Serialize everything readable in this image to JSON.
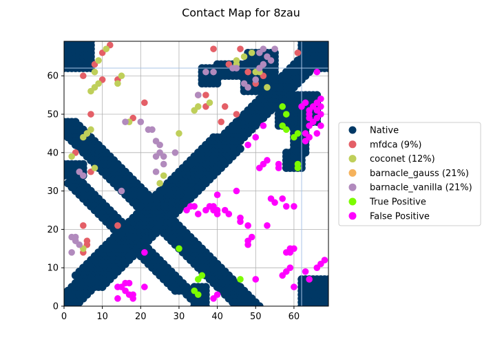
{
  "chart_data": {
    "type": "scatter",
    "title": "Contact Map for 8zau",
    "xlabel": "",
    "ylabel": "",
    "xlim": [
      0,
      69
    ],
    "ylim": [
      0,
      69
    ],
    "xticks": [
      0,
      10,
      20,
      30,
      40,
      50,
      60
    ],
    "yticks": [
      0,
      10,
      20,
      30,
      40,
      50,
      60
    ],
    "grid": true,
    "legend_position": "center-right outside",
    "reference_lines": {
      "x": 62,
      "y": 62
    },
    "series": [
      {
        "name": "Native",
        "color": "#003865",
        "bands": [
          {
            "x0": 0,
            "y0": 0,
            "x1": 69,
            "y1": 69,
            "half_width": 3
          },
          {
            "x0": 8,
            "y0": 5,
            "x1": 44,
            "y1": 41,
            "half_width": 2
          },
          {
            "x0": 5,
            "y0": 8,
            "x1": 41,
            "y1": 44,
            "half_width": 2
          },
          {
            "x0": 0,
            "y0": 48,
            "x1": 48,
            "y1": 0,
            "half_width": 3
          },
          {
            "x0": 1,
            "y0": 35,
            "x1": 34,
            "y1": 2,
            "half_width": 1
          },
          {
            "x0": 2,
            "y0": 32,
            "x1": 30,
            "y1": 4,
            "half_width": 1
          }
        ],
        "blocks": [
          {
            "x": [
              0,
              7
            ],
            "y": [
              62,
              69
            ]
          },
          {
            "x": [
              62,
              69
            ],
            "y": [
              0,
              7
            ]
          },
          {
            "x": [
              62,
              69
            ],
            "y": [
              62,
              69
            ]
          },
          {
            "x": [
              36,
              40
            ],
            "y": [
              58,
              62
            ]
          },
          {
            "x": [
              58,
              62
            ],
            "y": [
              36,
              40
            ]
          },
          {
            "x": [
              34,
              37
            ],
            "y": [
              0,
              5
            ]
          },
          {
            "x": [
              0,
              5
            ],
            "y": [
              34,
              37
            ]
          },
          {
            "x": [
              47,
              52
            ],
            "y": [
              56,
              62
            ]
          },
          {
            "x": [
              56,
              62
            ],
            "y": [
              47,
              52
            ]
          },
          {
            "x": [
              48,
              55
            ],
            "y": [
              58,
              66
            ]
          },
          {
            "x": [
              58,
              66
            ],
            "y": [
              48,
              55
            ]
          },
          {
            "x": [
              60,
              63
            ],
            "y": [
              40,
              47
            ]
          },
          {
            "x": [
              40,
              47
            ],
            "y": [
              60,
              63
            ]
          }
        ]
      },
      {
        "name": "mfdca (9%)",
        "color": "#e45f67",
        "points": [
          [
            12,
            68
          ],
          [
            10,
            66
          ],
          [
            8,
            63
          ],
          [
            5,
            60
          ],
          [
            10,
            59
          ],
          [
            14,
            59
          ],
          [
            7,
            50
          ],
          [
            6,
            45
          ],
          [
            3,
            40
          ],
          [
            7,
            35
          ],
          [
            18,
            49
          ],
          [
            21,
            53
          ],
          [
            35,
            55
          ],
          [
            37,
            55
          ],
          [
            37,
            52
          ],
          [
            41,
            48
          ],
          [
            42,
            52
          ],
          [
            45,
            50
          ],
          [
            48,
            61
          ],
          [
            43,
            63
          ],
          [
            39,
            67
          ],
          [
            46,
            67
          ],
          [
            50,
            58
          ],
          [
            52,
            60
          ],
          [
            61,
            66
          ],
          [
            14,
            21
          ],
          [
            5,
            21
          ],
          [
            6,
            17
          ],
          [
            5,
            14
          ],
          [
            6,
            16
          ]
        ]
      },
      {
        "name": "coconet (12%)",
        "color": "#bfcf5a",
        "points": [
          [
            11,
            67
          ],
          [
            9,
            64
          ],
          [
            8,
            61
          ],
          [
            9,
            58
          ],
          [
            8,
            57
          ],
          [
            7,
            56
          ],
          [
            14,
            58
          ],
          [
            15,
            60
          ],
          [
            2,
            39
          ],
          [
            5,
            44
          ],
          [
            7,
            46
          ],
          [
            6,
            45
          ],
          [
            8,
            36
          ],
          [
            17,
            48
          ],
          [
            30,
            45
          ],
          [
            34,
            51
          ],
          [
            35,
            52
          ],
          [
            38,
            53
          ],
          [
            45,
            63
          ],
          [
            45,
            64
          ],
          [
            47,
            65
          ],
          [
            49,
            66
          ],
          [
            50,
            61
          ],
          [
            51,
            61
          ],
          [
            53,
            57
          ],
          [
            25,
            32
          ],
          [
            26,
            34
          ],
          [
            5,
            15
          ]
        ]
      },
      {
        "name": "barnacle_gauss (21%)",
        "color": "#f5b25c",
        "points": []
      },
      {
        "name": "barnacle_vanilla (21%)",
        "color": "#b18abd",
        "points": [
          [
            16,
            48
          ],
          [
            20,
            48
          ],
          [
            22,
            46
          ],
          [
            23,
            46
          ],
          [
            24,
            43
          ],
          [
            25,
            42
          ],
          [
            24,
            39
          ],
          [
            25,
            40
          ],
          [
            26,
            39
          ],
          [
            26,
            37
          ],
          [
            24,
            35
          ],
          [
            29,
            40
          ],
          [
            35,
            55
          ],
          [
            37,
            61
          ],
          [
            39,
            61
          ],
          [
            44,
            62
          ],
          [
            45,
            62
          ],
          [
            47,
            58
          ],
          [
            48,
            57
          ],
          [
            50,
            59
          ],
          [
            51,
            62
          ],
          [
            51,
            66
          ],
          [
            52,
            67
          ],
          [
            53,
            65
          ],
          [
            54,
            64
          ],
          [
            52,
            63
          ],
          [
            55,
            67
          ],
          [
            4,
            35
          ],
          [
            5,
            34
          ],
          [
            15,
            30
          ],
          [
            2,
            18
          ],
          [
            3,
            18
          ],
          [
            4,
            16
          ],
          [
            3,
            17
          ],
          [
            2,
            14
          ]
        ]
      },
      {
        "name": "True Positive",
        "color": "#7cfc00",
        "points": [
          [
            30,
            15
          ],
          [
            35,
            7
          ],
          [
            36,
            8
          ],
          [
            34,
            4
          ],
          [
            35,
            3
          ],
          [
            46,
            7
          ],
          [
            57,
            52
          ],
          [
            58,
            50
          ],
          [
            57,
            47
          ],
          [
            58,
            46
          ],
          [
            61,
            45
          ],
          [
            60,
            44
          ],
          [
            61,
            37
          ],
          [
            61,
            36
          ]
        ]
      },
      {
        "name": "False Positive",
        "color": "#ff00ff",
        "points": [
          [
            14,
            2
          ],
          [
            14,
            5
          ],
          [
            15,
            5
          ],
          [
            16,
            6
          ],
          [
            17,
            6
          ],
          [
            16,
            4
          ],
          [
            17,
            3
          ],
          [
            18,
            3
          ],
          [
            18,
            2
          ],
          [
            21,
            5
          ],
          [
            21,
            14
          ],
          [
            32,
            25
          ],
          [
            33,
            26
          ],
          [
            34,
            26
          ],
          [
            35,
            24
          ],
          [
            37,
            25
          ],
          [
            38,
            26
          ],
          [
            39,
            25
          ],
          [
            39,
            26
          ],
          [
            40,
            25
          ],
          [
            40,
            24
          ],
          [
            40,
            29
          ],
          [
            42,
            25
          ],
          [
            43,
            24
          ],
          [
            45,
            30
          ],
          [
            46,
            23
          ],
          [
            46,
            22
          ],
          [
            48,
            21
          ],
          [
            48,
            16
          ],
          [
            48,
            17
          ],
          [
            49,
            18
          ],
          [
            53,
            21
          ],
          [
            48,
            42
          ],
          [
            50,
            44
          ],
          [
            51,
            36
          ],
          [
            52,
            37
          ],
          [
            53,
            38
          ],
          [
            56,
            37
          ],
          [
            56,
            36
          ],
          [
            52,
            47
          ],
          [
            58,
            26
          ],
          [
            60,
            26
          ],
          [
            57,
            8
          ],
          [
            58,
            9
          ],
          [
            59,
            10
          ],
          [
            60,
            5
          ],
          [
            63,
            9
          ],
          [
            64,
            7
          ],
          [
            66,
            10
          ],
          [
            67,
            11
          ],
          [
            68,
            12
          ],
          [
            58,
            14
          ],
          [
            59,
            15
          ],
          [
            60,
            15
          ],
          [
            59,
            14
          ],
          [
            39,
            2
          ],
          [
            40,
            3
          ],
          [
            50,
            7
          ],
          [
            54,
            28
          ],
          [
            55,
            27
          ],
          [
            57,
            28
          ],
          [
            62,
            52
          ],
          [
            63,
            53
          ],
          [
            64,
            51
          ],
          [
            64,
            50
          ],
          [
            64,
            49
          ],
          [
            64,
            47
          ],
          [
            65,
            48
          ],
          [
            65,
            52
          ],
          [
            66,
            53
          ],
          [
            66,
            51
          ],
          [
            66,
            49
          ],
          [
            67,
            54
          ],
          [
            67,
            52
          ],
          [
            67,
            50
          ],
          [
            67,
            47
          ],
          [
            66,
            45
          ],
          [
            63,
            45
          ],
          [
            64,
            44
          ],
          [
            63,
            43
          ],
          [
            66,
            61
          ]
        ]
      }
    ]
  }
}
